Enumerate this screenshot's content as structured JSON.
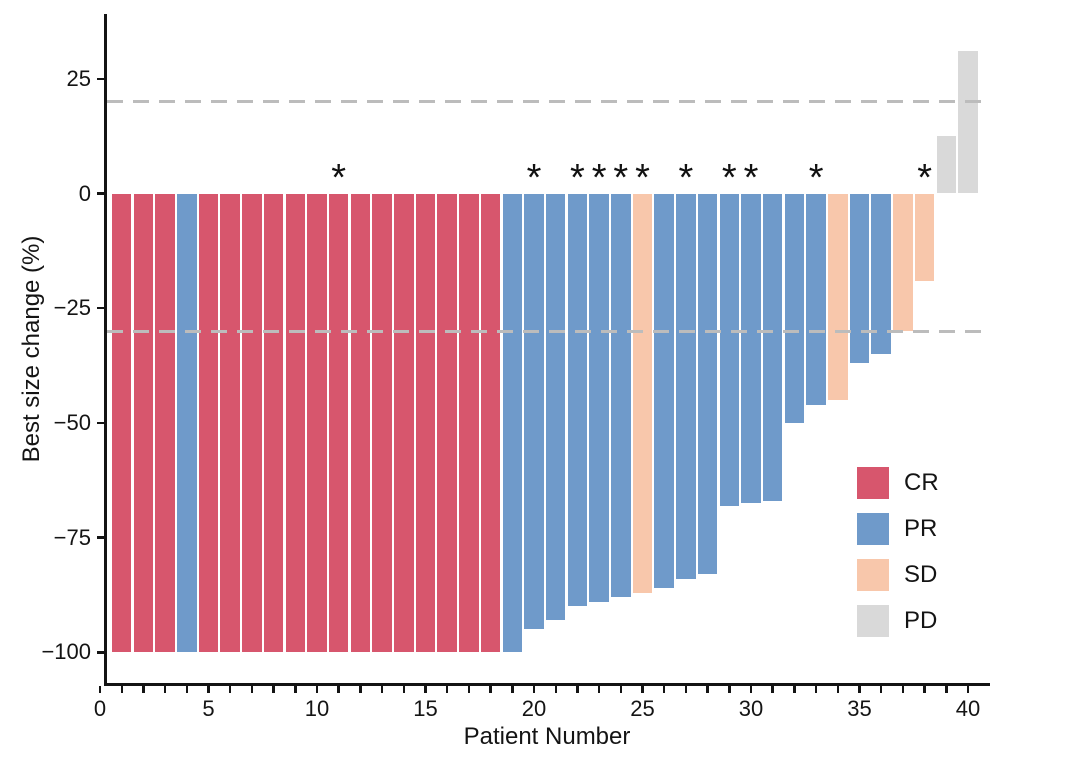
{
  "figure": {
    "background": "#ffffff"
  },
  "chart_data": {
    "type": "bar",
    "subtype": "waterfall",
    "title": "",
    "xlabel": "Patient Number",
    "ylabel": "Best size change (%)",
    "x_ticks": [
      0,
      5,
      10,
      15,
      20,
      25,
      30,
      35,
      40
    ],
    "x_minor_tick_every": 1,
    "y_ticks": [
      {
        "value": 25,
        "label": "25"
      },
      {
        "value": 0,
        "label": "0"
      },
      {
        "value": -25,
        "label": "−25"
      },
      {
        "value": -50,
        "label": "−50"
      },
      {
        "value": -75,
        "label": "−75"
      },
      {
        "value": -100,
        "label": "−100"
      }
    ],
    "xlim": [
      0,
      41
    ],
    "ylim": [
      -106.7,
      38.9
    ],
    "grid": "off",
    "legend_position": "inside-bottom-right",
    "reference_lines": [
      {
        "y": 20
      },
      {
        "y": -30
      }
    ],
    "reference_line_color": "#bcbcbc",
    "axis_color": "#141414",
    "flag_symbol": "*",
    "legend": [
      {
        "label": "CR",
        "color": "#d7566d"
      },
      {
        "label": "PR",
        "color": "#6f9aca"
      },
      {
        "label": "SD",
        "color": "#f8c7ab"
      },
      {
        "label": "PD",
        "color": "#d9d9d9"
      }
    ],
    "patients": [
      {
        "n": 1,
        "response": "CR",
        "value": -100,
        "flag": false
      },
      {
        "n": 2,
        "response": "CR",
        "value": -100,
        "flag": false
      },
      {
        "n": 3,
        "response": "CR",
        "value": -100,
        "flag": false
      },
      {
        "n": 4,
        "response": "PR",
        "value": -100,
        "flag": false
      },
      {
        "n": 5,
        "response": "CR",
        "value": -100,
        "flag": false
      },
      {
        "n": 6,
        "response": "CR",
        "value": -100,
        "flag": false
      },
      {
        "n": 7,
        "response": "CR",
        "value": -100,
        "flag": false
      },
      {
        "n": 8,
        "response": "CR",
        "value": -100,
        "flag": false
      },
      {
        "n": 9,
        "response": "CR",
        "value": -100,
        "flag": false
      },
      {
        "n": 10,
        "response": "CR",
        "value": -100,
        "flag": false
      },
      {
        "n": 11,
        "response": "CR",
        "value": -100,
        "flag": true
      },
      {
        "n": 12,
        "response": "CR",
        "value": -100,
        "flag": false
      },
      {
        "n": 13,
        "response": "CR",
        "value": -100,
        "flag": false
      },
      {
        "n": 14,
        "response": "CR",
        "value": -100,
        "flag": false
      },
      {
        "n": 15,
        "response": "CR",
        "value": -100,
        "flag": false
      },
      {
        "n": 16,
        "response": "CR",
        "value": -100,
        "flag": false
      },
      {
        "n": 17,
        "response": "CR",
        "value": -100,
        "flag": false
      },
      {
        "n": 18,
        "response": "CR",
        "value": -100,
        "flag": false
      },
      {
        "n": 19,
        "response": "PR",
        "value": -100,
        "flag": false
      },
      {
        "n": 20,
        "response": "PR",
        "value": -95,
        "flag": true
      },
      {
        "n": 21,
        "response": "PR",
        "value": -93,
        "flag": false
      },
      {
        "n": 22,
        "response": "PR",
        "value": -90,
        "flag": true
      },
      {
        "n": 23,
        "response": "PR",
        "value": -89,
        "flag": true
      },
      {
        "n": 24,
        "response": "PR",
        "value": -88,
        "flag": true
      },
      {
        "n": 25,
        "response": "SD",
        "value": -87,
        "flag": true
      },
      {
        "n": 26,
        "response": "PR",
        "value": -86,
        "flag": false
      },
      {
        "n": 27,
        "response": "PR",
        "value": -84,
        "flag": true
      },
      {
        "n": 28,
        "response": "PR",
        "value": -83,
        "flag": false
      },
      {
        "n": 29,
        "response": "PR",
        "value": -68,
        "flag": true
      },
      {
        "n": 30,
        "response": "PR",
        "value": -67.5,
        "flag": true
      },
      {
        "n": 31,
        "response": "PR",
        "value": -67,
        "flag": false
      },
      {
        "n": 32,
        "response": "PR",
        "value": -50,
        "flag": false
      },
      {
        "n": 33,
        "response": "PR",
        "value": -46,
        "flag": true
      },
      {
        "n": 34,
        "response": "SD",
        "value": -45,
        "flag": false
      },
      {
        "n": 35,
        "response": "PR",
        "value": -37,
        "flag": false
      },
      {
        "n": 36,
        "response": "PR",
        "value": -35,
        "flag": false
      },
      {
        "n": 37,
        "response": "SD",
        "value": -30,
        "flag": false
      },
      {
        "n": 38,
        "response": "SD",
        "value": -19,
        "flag": true
      },
      {
        "n": 39,
        "response": "PD",
        "value": 12.5,
        "flag": false
      },
      {
        "n": 40,
        "response": "PD",
        "value": 31,
        "flag": false
      }
    ]
  }
}
